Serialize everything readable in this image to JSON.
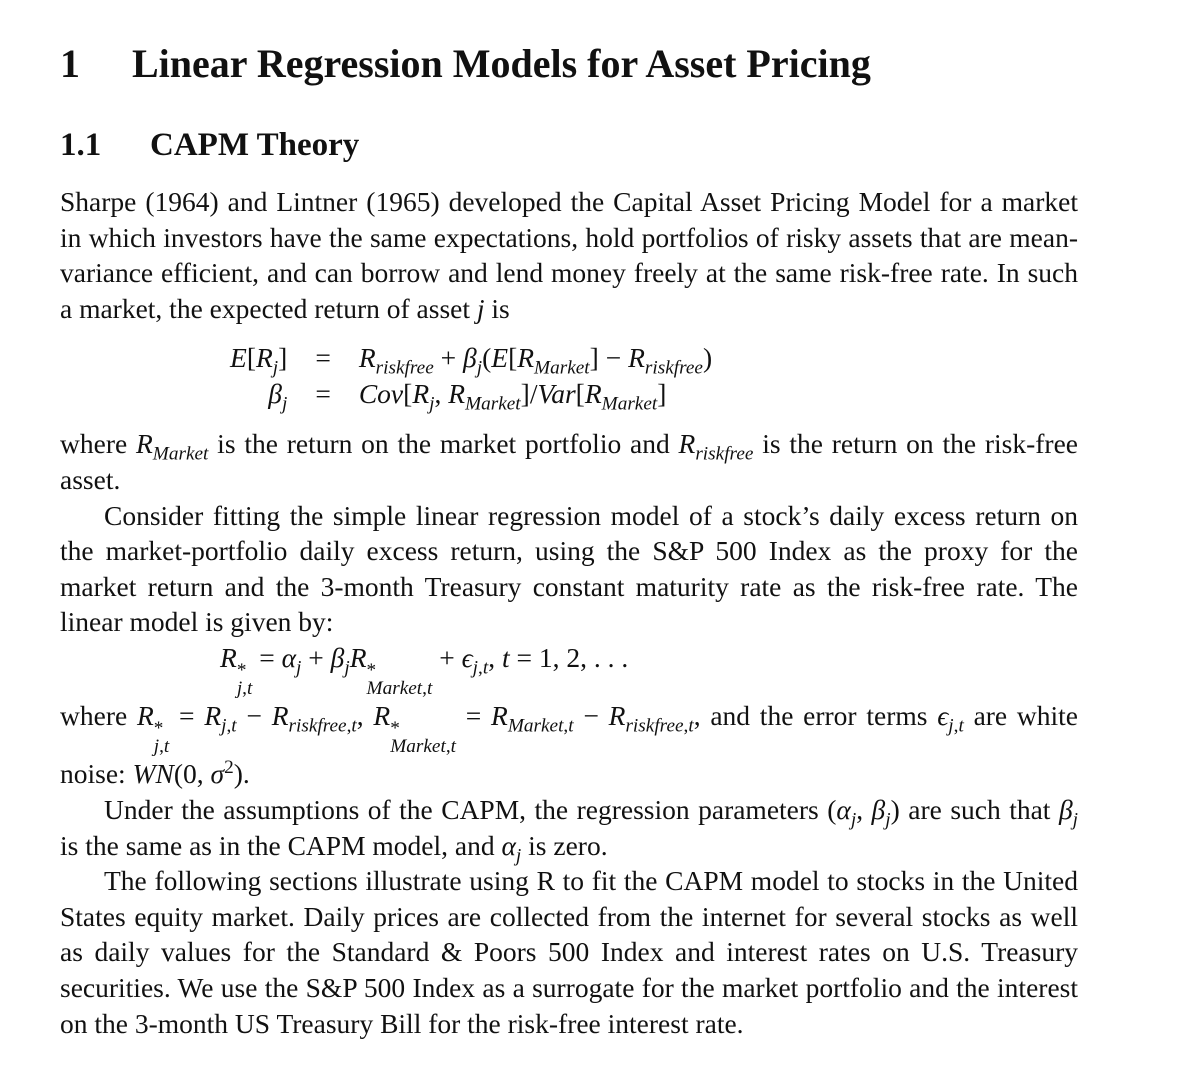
{
  "section": {
    "number": "1",
    "title": "Linear Regression Models for Asset Pricing"
  },
  "subsection": {
    "number": "1.1",
    "title": "CAPM Theory"
  },
  "blocks": [
    {
      "kind": "p",
      "indent": false,
      "content": [
        "Sharpe (1964) and Lintner (1965) developed the Capital Asset Pricing Model for a market in which investors have the same expectations, hold portfolios of risky assets that are mean-variance efficient, and can borrow and lend money freely at the same risk-free rate. In such a market, the expected return of asset ",
        {
          "math": [
            "j"
          ]
        },
        " is"
      ]
    },
    {
      "kind": "eqarray",
      "rows": [
        {
          "lhs": [
            "E[R",
            {
              "sub": [
                "j"
              ]
            },
            "]"
          ],
          "rel": "=",
          "rhs": [
            "R",
            {
              "sub": [
                "riskfree"
              ]
            },
            " + β",
            {
              "sub": [
                "j"
              ]
            },
            "(E[R",
            {
              "sub": [
                "Market"
              ]
            },
            "] − R",
            {
              "sub": [
                "riskfree"
              ]
            },
            ")"
          ]
        },
        {
          "lhs": [
            "β",
            {
              "sub": [
                "j"
              ]
            }
          ],
          "rel": "=",
          "rhs": [
            "Cov[R",
            {
              "sub": [
                "j"
              ]
            },
            ", R",
            {
              "sub": [
                "Market"
              ]
            },
            "]/Var[R",
            {
              "sub": [
                "Market"
              ]
            },
            "]"
          ]
        }
      ]
    },
    {
      "kind": "p",
      "indent": false,
      "content": [
        "where ",
        {
          "math": [
            "R",
            {
              "sub": [
                "Market"
              ]
            }
          ]
        },
        " is the return on the market portfolio and ",
        {
          "math": [
            "R",
            {
              "sub": [
                "riskfree"
              ]
            }
          ]
        },
        " is the return on the risk-free asset."
      ]
    },
    {
      "kind": "p",
      "indent": true,
      "content": [
        "Consider fitting the simple linear regression model of a stock’s daily excess return on the market-portfolio daily excess return, using the S&P 500 Index as the proxy for the market return and the 3-month Treasury constant maturity rate as the risk-free rate. The linear model is given by:"
      ]
    },
    {
      "kind": "display",
      "content": [
        "R",
        {
          "sup": [
            "*"
          ],
          "sub": [
            "j,t"
          ]
        },
        " = α",
        {
          "sub": [
            "j"
          ]
        },
        " + β",
        {
          "sub": [
            "j"
          ]
        },
        "R",
        {
          "sup": [
            "*"
          ],
          "sub": [
            "Market,t"
          ]
        },
        " + ϵ",
        {
          "sub": [
            "j,t"
          ]
        },
        ",  t = 1, 2, . . ."
      ]
    },
    {
      "kind": "p",
      "indent": false,
      "content": [
        "where ",
        {
          "math": [
            "R",
            {
              "sup": [
                "*"
              ],
              "sub": [
                "j,t"
              ]
            },
            " = R",
            {
              "sub": [
                "j,t"
              ]
            },
            " − R",
            {
              "sub": [
                "riskfree,t"
              ]
            },
            ",  R",
            {
              "sup": [
                "*"
              ],
              "sub": [
                "Market,t"
              ]
            },
            " = R",
            {
              "sub": [
                "Market,t"
              ]
            },
            " − R",
            {
              "sub": [
                "riskfree,t"
              ]
            }
          ]
        },
        ", and the error terms ",
        {
          "math": [
            "ϵ",
            {
              "sub": [
                "j,t"
              ]
            }
          ]
        },
        " are white noise: ",
        {
          "math": [
            "WN(0, σ",
            {
              "sup": [
                "2"
              ]
            },
            ")"
          ]
        },
        "."
      ]
    },
    {
      "kind": "p",
      "indent": true,
      "content": [
        "Under the assumptions of the CAPM, the regression parameters ",
        {
          "math": [
            "(α",
            {
              "sub": [
                "j"
              ]
            },
            ", β",
            {
              "sub": [
                "j"
              ]
            },
            ")"
          ]
        },
        " are such that ",
        {
          "math": [
            "β",
            {
              "sub": [
                "j"
              ]
            }
          ]
        },
        " is the same as in the CAPM model, and ",
        {
          "math": [
            "α",
            {
              "sub": [
                "j"
              ]
            }
          ]
        },
        " is zero."
      ]
    },
    {
      "kind": "p",
      "indent": true,
      "content": [
        "The following sections illustrate using R to fit the CAPM model to stocks in the United States equity market. Daily prices are collected from the internet for several stocks as well as daily values for the Standard & Poors 500 Index and interest rates on U.S. Treasury securities. We use the S&P 500 Index as a surrogate for the market portfolio and the interest on the 3-month US Treasury Bill for the risk-free interest rate."
      ]
    }
  ]
}
